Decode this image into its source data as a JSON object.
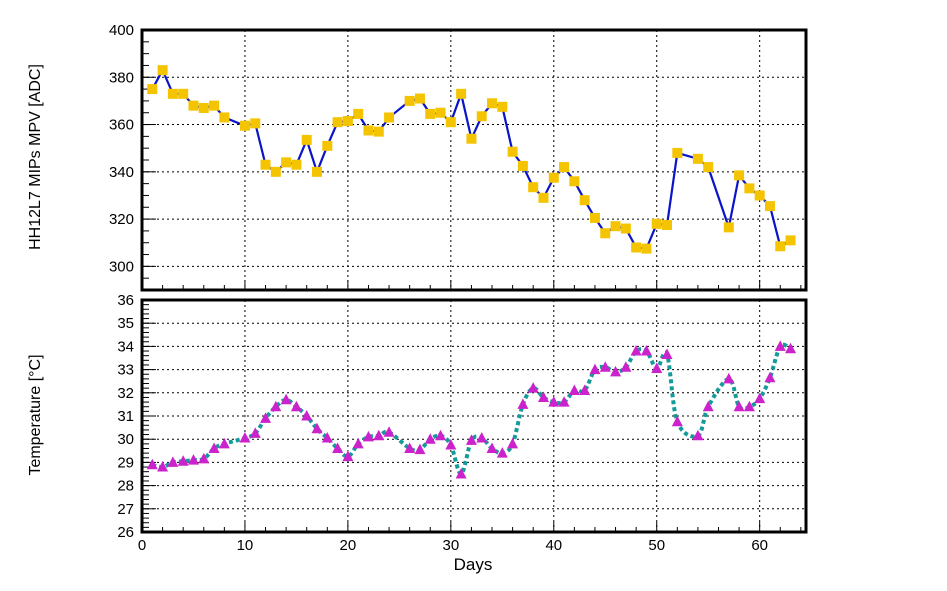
{
  "colors": {
    "mpv_line": "#0a14c8",
    "mpv_marker": "#f5c400",
    "temp_line": "#159a9a",
    "temp_marker": "#cc22cc",
    "grid": "#000000",
    "frame": "#000000"
  },
  "chart_data": [
    {
      "type": "line",
      "title": "",
      "xlabel": "",
      "ylabel": "HH12L7 MIPs MPV [ADC]",
      "xlim": [
        0,
        64.5
      ],
      "ylim": [
        290,
        400
      ],
      "xticks": [
        0,
        10,
        20,
        30,
        40,
        50,
        60
      ],
      "yticks": [
        300,
        320,
        340,
        360,
        380,
        400
      ],
      "grid": true,
      "line_style": "solid",
      "marker": "square",
      "series": [
        {
          "x": [
            1,
            2,
            3,
            4,
            5,
            6,
            7,
            8,
            10,
            11,
            12,
            13,
            14,
            15,
            16,
            17,
            18,
            19,
            20,
            21,
            22,
            23,
            24,
            26,
            27,
            28,
            29,
            30,
            31,
            32,
            33,
            34,
            35,
            36,
            37,
            38,
            39,
            40,
            41,
            42,
            43,
            44,
            45,
            46,
            47,
            48,
            49,
            50,
            51,
            52,
            54,
            55,
            57,
            58,
            59,
            60,
            61,
            62,
            63
          ],
          "y": [
            375,
            383,
            373,
            373,
            368,
            367,
            368,
            363,
            359.5,
            360.5,
            343,
            340,
            344,
            343,
            353.5,
            340,
            351,
            361,
            361.5,
            364.5,
            357.5,
            357,
            363,
            370,
            371,
            364.5,
            365,
            361,
            373,
            354,
            363.5,
            369,
            367.5,
            348.5,
            342.5,
            333.5,
            329,
            337.5,
            342,
            336,
            328,
            320.5,
            314,
            317,
            316,
            308,
            307.5,
            318,
            317.5,
            348,
            345.5,
            342,
            316.5,
            338.5,
            333,
            330,
            325.5,
            308.5,
            311
          ]
        }
      ]
    },
    {
      "type": "line",
      "title": "",
      "xlabel": "Days",
      "ylabel": "Temperature [°C]",
      "xlim": [
        0,
        64.5
      ],
      "ylim": [
        26,
        36
      ],
      "xticks": [
        0,
        10,
        20,
        30,
        40,
        50,
        60
      ],
      "yticks": [
        26,
        27,
        28,
        29,
        30,
        31,
        32,
        33,
        34,
        35,
        36
      ],
      "grid": true,
      "line_style": "dotted",
      "marker": "triangle",
      "series": [
        {
          "x": [
            1,
            2,
            3,
            4,
            5,
            6,
            7,
            8,
            10,
            11,
            12,
            13,
            14,
            15,
            16,
            17,
            18,
            19,
            20,
            21,
            22,
            23,
            24,
            26,
            27,
            28,
            29,
            30,
            31,
            32,
            33,
            34,
            35,
            36,
            37,
            38,
            39,
            40,
            41,
            42,
            43,
            44,
            45,
            46,
            47,
            48,
            49,
            50,
            51,
            52,
            54,
            55,
            57,
            58,
            59,
            60,
            61,
            62,
            63
          ],
          "y": [
            28.9,
            28.8,
            29.0,
            29.05,
            29.1,
            29.15,
            29.6,
            29.8,
            30.05,
            30.25,
            30.9,
            31.4,
            31.7,
            31.4,
            31.0,
            30.45,
            30.05,
            29.6,
            29.25,
            29.8,
            30.1,
            30.15,
            30.3,
            29.6,
            29.55,
            30.0,
            30.15,
            29.75,
            28.5,
            29.95,
            30.05,
            29.6,
            29.4,
            29.8,
            31.5,
            32.2,
            31.8,
            31.6,
            31.6,
            32.1,
            32.1,
            33.0,
            33.1,
            32.9,
            33.1,
            33.8,
            33.8,
            33.05,
            33.65,
            30.75,
            30.15,
            31.4,
            32.6,
            31.4,
            31.4,
            31.75,
            32.65,
            34.0,
            33.9
          ]
        }
      ]
    }
  ],
  "axis_labels": {
    "top_y": "HH12L7 MIPs MPV [ADC]",
    "bottom_y": "Temperature [°C]",
    "x": "Days"
  }
}
